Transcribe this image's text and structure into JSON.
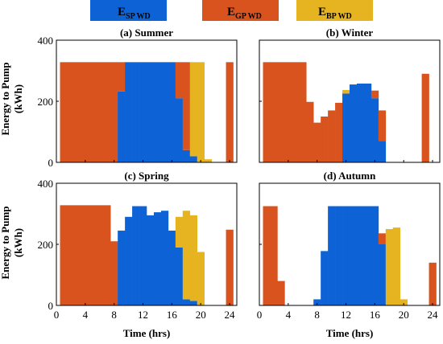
{
  "legend": [
    {
      "key": "sp",
      "main": "E",
      "sub": "SP WD",
      "color": "#0d63d6"
    },
    {
      "key": "gp",
      "main": "E",
      "sub": "GP WD",
      "color": "#d9531e"
    },
    {
      "key": "bp",
      "main": "E",
      "sub": "BP WD",
      "color": "#e5b420"
    }
  ],
  "ylabel_lines": [
    "Energy to Pump",
    "(kWh)"
  ],
  "xlabel": "Time (hrs)",
  "chart_data": [
    {
      "type": "bar",
      "title": "(a) Summer",
      "xlim": [
        0,
        25
      ],
      "ylim": [
        0,
        400
      ],
      "xticks": [],
      "yticks": [
        0,
        200,
        400
      ],
      "hours": [
        1,
        2,
        3,
        4,
        5,
        6,
        7,
        8,
        9,
        10,
        11,
        12,
        13,
        14,
        15,
        16,
        17,
        18,
        19,
        20,
        21,
        22,
        23,
        24
      ],
      "series": [
        {
          "key": "sp",
          "values": [
            0,
            0,
            0,
            0,
            0,
            0,
            0,
            0,
            232,
            328,
            328,
            328,
            328,
            328,
            328,
            328,
            210,
            40,
            20,
            0,
            0,
            0,
            0,
            0
          ]
        },
        {
          "key": "gp",
          "values": [
            328,
            328,
            328,
            328,
            328,
            328,
            328,
            328,
            96,
            0,
            0,
            0,
            0,
            0,
            0,
            0,
            118,
            288,
            0,
            0,
            0,
            0,
            0,
            328
          ]
        },
        {
          "key": "bp",
          "values": [
            0,
            0,
            0,
            0,
            0,
            0,
            0,
            0,
            0,
            0,
            0,
            0,
            0,
            0,
            0,
            0,
            0,
            0,
            308,
            328,
            10,
            0,
            0,
            0
          ]
        }
      ]
    },
    {
      "type": "bar",
      "title": "(b) Winter",
      "xlim": [
        0,
        25
      ],
      "ylim": [
        0,
        400
      ],
      "xticks": [],
      "yticks": [],
      "hours": [
        1,
        2,
        3,
        4,
        5,
        6,
        7,
        8,
        9,
        10,
        11,
        12,
        13,
        14,
        15,
        16,
        17,
        18,
        19,
        20,
        21,
        22,
        23,
        24
      ],
      "series": [
        {
          "key": "sp",
          "values": [
            0,
            0,
            0,
            0,
            0,
            0,
            0,
            0,
            0,
            0,
            0,
            225,
            255,
            258,
            258,
            210,
            70,
            0,
            0,
            0,
            0,
            0,
            0,
            0
          ]
        },
        {
          "key": "gp",
          "values": [
            328,
            328,
            328,
            328,
            328,
            328,
            198,
            130,
            150,
            170,
            195,
            0,
            0,
            0,
            0,
            25,
            100,
            0,
            0,
            0,
            0,
            0,
            290,
            0
          ]
        },
        {
          "key": "bp",
          "values": [
            0,
            0,
            0,
            0,
            0,
            0,
            0,
            0,
            0,
            0,
            0,
            12,
            0,
            0,
            0,
            0,
            0,
            0,
            0,
            0,
            0,
            0,
            0,
            0
          ]
        }
      ]
    },
    {
      "type": "bar",
      "title": "(c) Spring",
      "xlim": [
        0,
        25
      ],
      "ylim": [
        0,
        400
      ],
      "xticks": [
        0,
        4,
        8,
        12,
        16,
        20,
        24
      ],
      "yticks": [
        0,
        200,
        400
      ],
      "hours": [
        1,
        2,
        3,
        4,
        5,
        6,
        7,
        8,
        9,
        10,
        11,
        12,
        13,
        14,
        15,
        16,
        17,
        18,
        19,
        20,
        21,
        22,
        23,
        24
      ],
      "series": [
        {
          "key": "sp",
          "values": [
            0,
            0,
            0,
            0,
            0,
            0,
            0,
            0,
            245,
            290,
            325,
            325,
            295,
            305,
            310,
            245,
            190,
            20,
            15,
            0,
            0,
            0,
            0,
            0
          ]
        },
        {
          "key": "gp",
          "values": [
            328,
            328,
            328,
            328,
            328,
            328,
            328,
            210,
            0,
            0,
            0,
            0,
            0,
            0,
            0,
            0,
            0,
            0,
            0,
            0,
            0,
            0,
            0,
            248
          ]
        },
        {
          "key": "bp",
          "values": [
            0,
            0,
            0,
            0,
            0,
            0,
            0,
            0,
            0,
            0,
            0,
            0,
            0,
            0,
            0,
            0,
            100,
            290,
            280,
            175,
            0,
            0,
            0,
            0
          ]
        }
      ]
    },
    {
      "type": "bar",
      "title": "(d) Autumn",
      "xlim": [
        0,
        25
      ],
      "ylim": [
        0,
        400
      ],
      "xticks": [
        0,
        4,
        8,
        12,
        16,
        20,
        24
      ],
      "yticks": [],
      "hours": [
        1,
        2,
        3,
        4,
        5,
        6,
        7,
        8,
        9,
        10,
        11,
        12,
        13,
        14,
        15,
        16,
        17,
        18,
        19,
        20,
        21,
        22,
        23,
        24
      ],
      "series": [
        {
          "key": "sp",
          "values": [
            0,
            0,
            0,
            0,
            0,
            0,
            0,
            20,
            178,
            325,
            325,
            325,
            325,
            325,
            325,
            325,
            200,
            0,
            0,
            0,
            0,
            0,
            0,
            0
          ]
        },
        {
          "key": "gp",
          "values": [
            325,
            325,
            80,
            0,
            0,
            0,
            0,
            0,
            0,
            0,
            0,
            0,
            0,
            0,
            0,
            0,
            36,
            0,
            0,
            0,
            0,
            0,
            0,
            140
          ]
        },
        {
          "key": "bp",
          "values": [
            0,
            0,
            0,
            0,
            0,
            0,
            0,
            0,
            0,
            0,
            0,
            0,
            0,
            0,
            0,
            0,
            0,
            250,
            255,
            20,
            0,
            0,
            0,
            0
          ]
        }
      ]
    }
  ]
}
